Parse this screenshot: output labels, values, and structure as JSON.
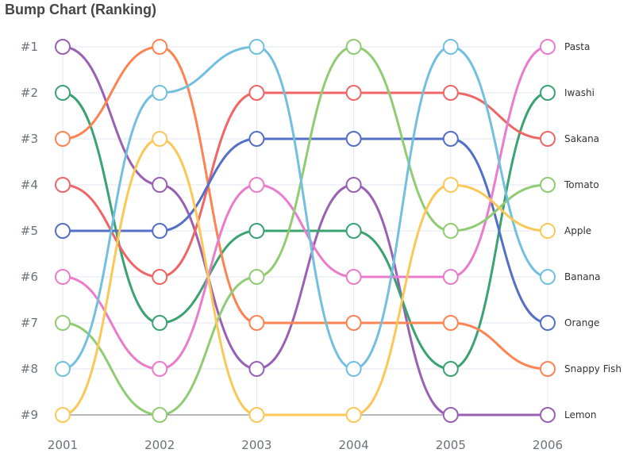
{
  "chart_data": {
    "type": "line",
    "title": "Bump Chart (Ranking)",
    "x": [
      "2001",
      "2002",
      "2003",
      "2004",
      "2005",
      "2006"
    ],
    "y_ticks": [
      "#1",
      "#2",
      "#3",
      "#4",
      "#5",
      "#6",
      "#7",
      "#8",
      "#9"
    ],
    "ylim": [
      1,
      9
    ],
    "y_inverted": true,
    "grid": true,
    "series": [
      {
        "name": "Lemon",
        "color": "#9a60b4",
        "values": [
          1,
          4,
          8,
          4,
          9,
          9
        ]
      },
      {
        "name": "Iwashi",
        "color": "#3ba272",
        "values": [
          2,
          7,
          5,
          5,
          8,
          2
        ]
      },
      {
        "name": "Snappy Fish",
        "color": "#fc8452",
        "values": [
          3,
          1,
          7,
          7,
          7,
          8
        ]
      },
      {
        "name": "Sakana",
        "color": "#ee6666",
        "values": [
          4,
          6,
          2,
          2,
          2,
          3
        ]
      },
      {
        "name": "Orange",
        "color": "#5470c6",
        "values": [
          5,
          5,
          3,
          3,
          3,
          7
        ]
      },
      {
        "name": "Pasta",
        "color": "#ea7ccc",
        "values": [
          6,
          8,
          4,
          6,
          6,
          1
        ]
      },
      {
        "name": "Tomato",
        "color": "#91cc75",
        "values": [
          7,
          9,
          6,
          1,
          5,
          4
        ]
      },
      {
        "name": "Banana",
        "color": "#73c0de",
        "values": [
          8,
          2,
          1,
          8,
          1,
          6
        ]
      },
      {
        "name": "Apple",
        "color": "#fac858",
        "values": [
          9,
          3,
          9,
          9,
          4,
          5
        ]
      }
    ]
  }
}
